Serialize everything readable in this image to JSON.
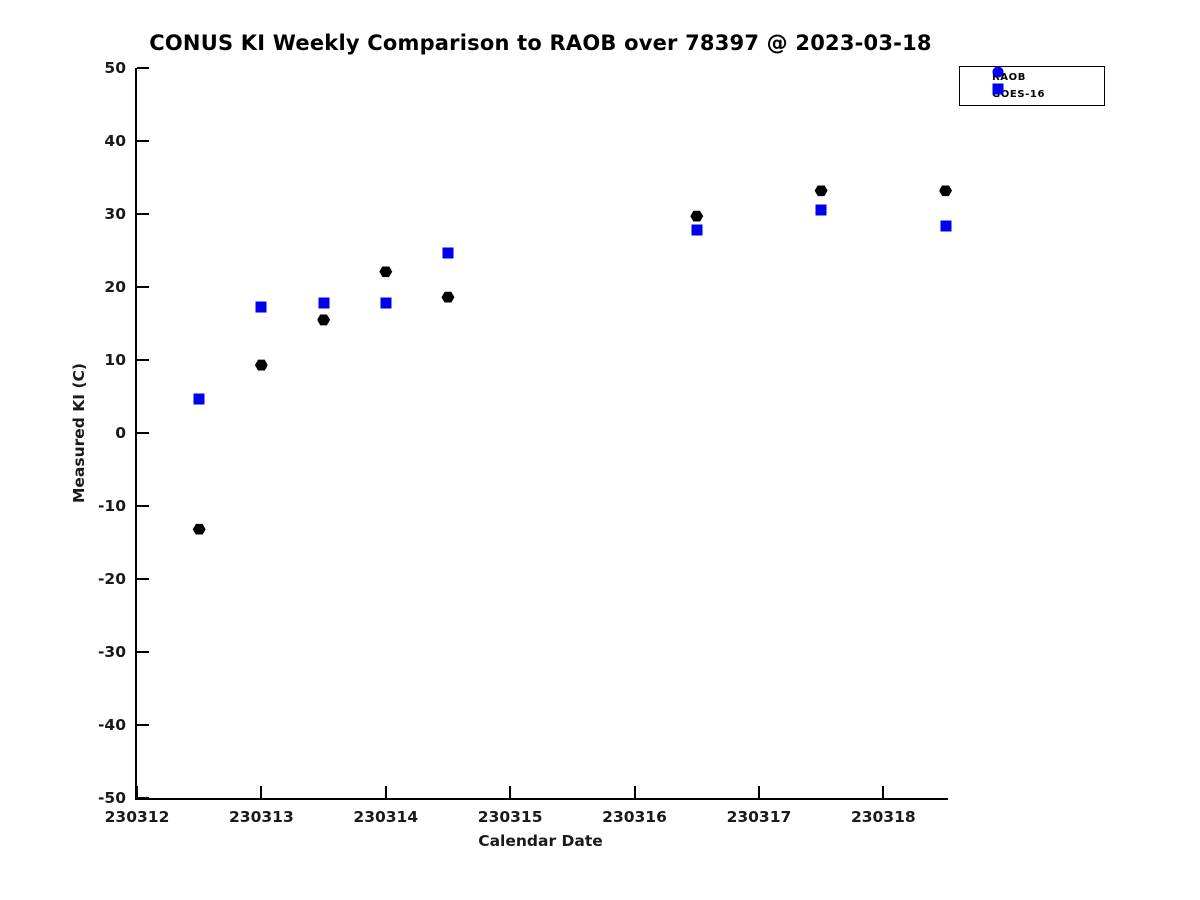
{
  "title": "CONUS KI Weekly Comparison to RAOB over 78397 @ 2023-03-18",
  "colors": {
    "accent_blue": "#0000ee",
    "marker_black": "#000000",
    "axis_black": "#000000"
  },
  "legend": {
    "entries": [
      {
        "label": "RAOB",
        "marker": "circle",
        "color": "#0000ee"
      },
      {
        "label": "GOES-16",
        "marker": "square",
        "color": "#0000ee"
      }
    ]
  },
  "chart_data": {
    "type": "scatter",
    "title": "CONUS KI Weekly Comparison to RAOB over 78397 @ 2023-03-18",
    "xlabel": "Calendar Date",
    "ylabel": "Measured KI (C)",
    "xlim": [
      230312,
      230318.52
    ],
    "ylim": [
      -50,
      50
    ],
    "xticks": [
      230312,
      230313,
      230314,
      230315,
      230316,
      230317,
      230318
    ],
    "yticks": [
      50,
      40,
      30,
      20,
      10,
      0,
      -10,
      -20,
      -30,
      -40,
      -50
    ],
    "grid": false,
    "legend_position": "top-right",
    "x": [
      230312.5,
      230313,
      230313.5,
      230314,
      230314.5,
      230316.5,
      230317.5,
      230318.5
    ],
    "series": [
      {
        "name": "RAOB",
        "marker": "hexagon",
        "color": "#000000",
        "values": [
          -13.2,
          9.3,
          15.5,
          22.1,
          18.6,
          29.7,
          33.2,
          33.2
        ]
      },
      {
        "name": "GOES-16",
        "marker": "square",
        "color": "#0000ee",
        "values": [
          4.7,
          17.2,
          17.8,
          17.8,
          24.6,
          27.8,
          30.5,
          28.4
        ]
      }
    ]
  }
}
